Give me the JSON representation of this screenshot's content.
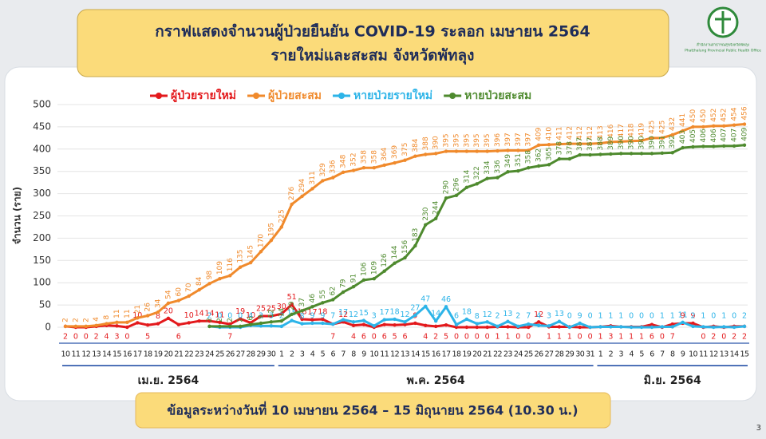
{
  "chart_data": {
    "type": "line",
    "title": "กราฟแสดงจำนวนผู้ป่วยยืนยัน COVID-19 ระลอก เมษายน 2564",
    "subtitle": "รายใหม่และสะสม จังหวัดพัทลุง",
    "y_label": "จำนวน (ราย)",
    "note": "ข้อมูลระหว่างวันที่ 10 เมษายน 2564 – 15 มิถุนายน 2564 (10.30 น.)",
    "logo_text": [
      "สำนักงานสาธารณสุขจังหวัดพัทลุง",
      "Phatthalung Provincial Public Health Office"
    ],
    "page_number": "3",
    "month_labels": [
      "เม.ย. 2564",
      "พ.ค. 2564",
      "มิ.ย. 2564"
    ],
    "categories": [
      "10",
      "11",
      "12",
      "13",
      "14",
      "15",
      "16",
      "17",
      "18",
      "19",
      "20",
      "21",
      "22",
      "23",
      "24",
      "25",
      "26",
      "27",
      "28",
      "29",
      "30",
      "1",
      "2",
      "3",
      "4",
      "5",
      "6",
      "7",
      "8",
      "9",
      "10",
      "11",
      "12",
      "13",
      "14",
      "15",
      "16",
      "17",
      "18",
      "19",
      "20",
      "21",
      "22",
      "23",
      "24",
      "25",
      "26",
      "27",
      "28",
      "29",
      "30",
      "31",
      "1",
      "2",
      "3",
      "4",
      "5",
      "6",
      "7",
      "8",
      "9",
      "10",
      "11",
      "12",
      "13",
      "14",
      "15"
    ],
    "series": [
      {
        "name": "ผู้ป่วยรายใหม่",
        "color": "#e3191c",
        "cumulative": false,
        "values": [
          2,
          0,
          0,
          2,
          4,
          3,
          0,
          10,
          5,
          8,
          20,
          6,
          10,
          14,
          14,
          11,
          7,
          19,
          10,
          25,
          25,
          30,
          51,
          18,
          17,
          18,
          7,
          12,
          4,
          6,
          0,
          6,
          5,
          6,
          9,
          4,
          2,
          5,
          0,
          0,
          0,
          0,
          1,
          1,
          0,
          0,
          12,
          1,
          1,
          1,
          0,
          0,
          1,
          3,
          1,
          1,
          1,
          6,
          0,
          7,
          9,
          9,
          0,
          2,
          0,
          2,
          2
        ]
      },
      {
        "name": "ผู้ป่วยสะสม",
        "color": "#f08a2c",
        "cumulative": true,
        "values": [
          2,
          2,
          2,
          4,
          8,
          11,
          11,
          21,
          26,
          34,
          54,
          60,
          70,
          84,
          98,
          109,
          116,
          135,
          145,
          170,
          195,
          225,
          276,
          294,
          311,
          329,
          336,
          348,
          352,
          358,
          358,
          364,
          369,
          375,
          384,
          388,
          390,
          395,
          395,
          395,
          395,
          395,
          396,
          397,
          397,
          397,
          409,
          410,
          411,
          412,
          412,
          412,
          413,
          416,
          417,
          418,
          419,
          425,
          425,
          432,
          441,
          450,
          450,
          452,
          452,
          454,
          456
        ]
      },
      {
        "name": "หายป่วยรายใหม่",
        "color": "#2db4e8",
        "cumulative": false,
        "values": [
          null,
          null,
          null,
          null,
          null,
          null,
          null,
          null,
          null,
          null,
          null,
          null,
          null,
          null,
          2,
          0,
          0,
          0,
          4,
          3,
          3,
          2,
          15,
          8,
          9,
          9,
          7,
          17,
          12,
          15,
          3,
          17,
          18,
          12,
          27,
          47,
          14,
          46,
          6,
          18,
          8,
          12,
          2,
          13,
          2,
          7,
          4,
          3,
          13,
          0,
          9,
          0,
          1,
          1,
          1,
          0,
          0,
          0,
          1,
          1,
          11,
          2,
          1,
          0,
          1,
          0,
          2
        ]
      },
      {
        "name": "หายป่วยสะสม",
        "color": "#4e8a2e",
        "cumulative": true,
        "values": [
          null,
          null,
          null,
          null,
          null,
          null,
          null,
          null,
          null,
          null,
          null,
          null,
          null,
          null,
          2,
          2,
          2,
          2,
          6,
          9,
          12,
          14,
          29,
          37,
          46,
          55,
          62,
          79,
          91,
          106,
          109,
          126,
          144,
          156,
          183,
          230,
          244,
          290,
          296,
          314,
          322,
          334,
          336,
          349,
          351,
          358,
          362,
          365,
          378,
          378,
          387,
          387,
          388,
          389,
          390,
          390,
          390,
          390,
          391,
          392,
          403,
          405,
          406,
          406,
          407,
          407,
          409
        ]
      }
    ],
    "ylim": [
      0,
      500
    ],
    "yticks": [
      0,
      50,
      100,
      150,
      200,
      250,
      300,
      350,
      400,
      450,
      500
    ],
    "grid": true
  }
}
